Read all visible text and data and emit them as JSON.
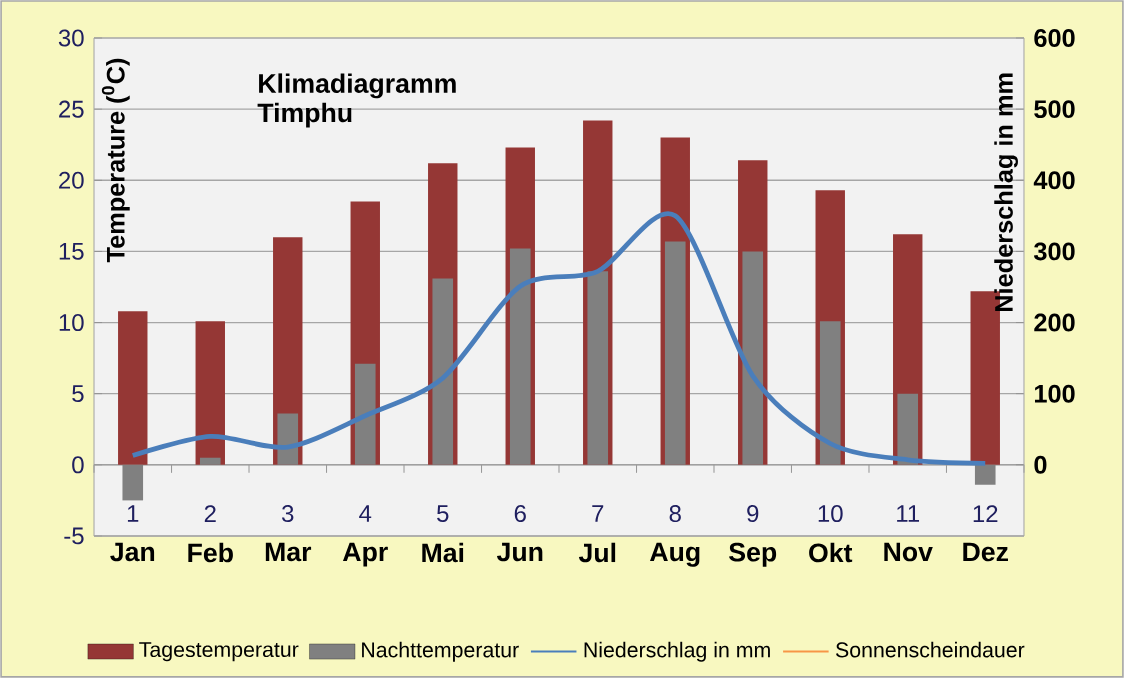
{
  "chart_data": {
    "type": "bar",
    "title": "Klimadiagramm",
    "subtitle": "Timphu",
    "ylabel": "Temperature ($^{0}$C)",
    "y2label": "Niederschlag in mm",
    "categories": [
      "Jan",
      "Feb",
      "Mar",
      "Apr",
      "Mai",
      "Jun",
      "Jul",
      "Aug",
      "Sep",
      "Okt",
      "Nov",
      "Dez"
    ],
    "annotations": [
      "1",
      "2",
      "3",
      "4",
      "5",
      "6",
      "7",
      "8",
      "9",
      "10",
      "11",
      "12"
    ],
    "series": [
      {
        "name": "Tagestemperatur",
        "color": "#953735",
        "values": [
          10.8,
          10.1,
          16.0,
          18.5,
          21.2,
          22.3,
          24.2,
          23.0,
          21.4,
          19.3,
          16.2,
          12.2
        ]
      },
      {
        "name": "Nachttemperatur",
        "color": "#808080",
        "values": [
          -2.5,
          0.5,
          3.6,
          7.1,
          13.1,
          15.2,
          13.6,
          15.7,
          15.0,
          10.1,
          5.0,
          -1.4
        ]
      },
      {
        "name": "Niederschlag in mm",
        "type": "line",
        "axis": "y2",
        "color": "#4a7ebb",
        "values": [
          13,
          40,
          25,
          69,
          122,
          251,
          272,
          350,
          125,
          30,
          7,
          2
        ]
      },
      {
        "name": "Sonnenscheindauer",
        "type": "line",
        "axis": "y2",
        "color": "#f79646",
        "values": [
          null,
          null,
          null,
          null,
          null,
          null,
          null,
          null,
          null,
          null,
          null,
          null
        ]
      }
    ],
    "ylim": [
      -5,
      30
    ],
    "yticks": [
      -5,
      0,
      5,
      10,
      15,
      20,
      25,
      30
    ],
    "y2lim": [
      -100,
      600
    ],
    "y2ticks": [
      0,
      100,
      200,
      300,
      400,
      500,
      600
    ],
    "grid": "y",
    "legend": "bottom"
  }
}
